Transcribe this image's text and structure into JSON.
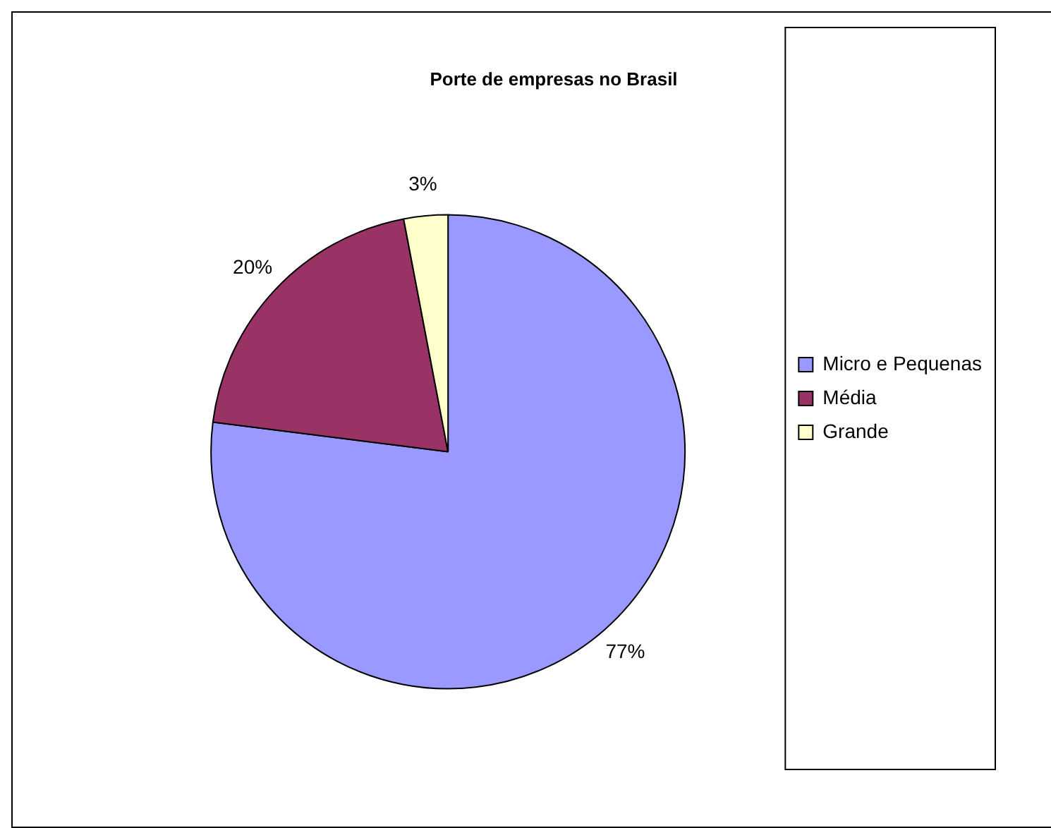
{
  "chart_data": {
    "type": "pie",
    "title": "Porte de empresas no Brasil",
    "categories": [
      "Micro e Pequenas",
      "Média",
      "Grande"
    ],
    "values": [
      77,
      20,
      3
    ],
    "value_labels": [
      "77%",
      "20%",
      "3%"
    ],
    "colors": [
      "#9999ff",
      "#993366",
      "#ffffcc"
    ],
    "legend": "right"
  }
}
